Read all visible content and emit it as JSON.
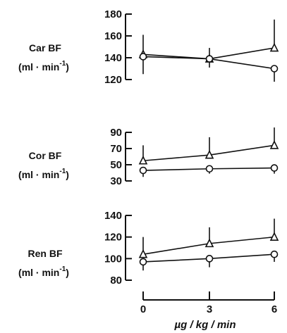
{
  "chart_data": [
    {
      "type": "line",
      "ylabel_line1": "Car BF",
      "ylabel_unit": "(ml · min",
      "ylabel_exp": "-1",
      "ylabel_close": ")",
      "x": [
        0,
        3,
        6
      ],
      "ylim": [
        120,
        180
      ],
      "yticks": [
        120,
        140,
        160,
        180
      ],
      "series": [
        {
          "marker": "triangle",
          "values": [
            143,
            139,
            149
          ],
          "error": [
            18,
            10,
            26
          ]
        },
        {
          "marker": "circle",
          "values": [
            141,
            139,
            130
          ],
          "error": [
            16,
            8,
            12
          ]
        }
      ]
    },
    {
      "type": "line",
      "ylabel_line1": "Cor BF",
      "ylabel_unit": "(ml · min",
      "ylabel_exp": "-1",
      "ylabel_close": ")",
      "x": [
        0,
        3,
        6
      ],
      "ylim": [
        30,
        90
      ],
      "yticks": [
        30,
        50,
        70,
        90
      ],
      "series": [
        {
          "marker": "triangle",
          "values": [
            55,
            62,
            74
          ],
          "error": [
            19,
            22,
            22
          ]
        },
        {
          "marker": "circle",
          "values": [
            43,
            45,
            46
          ],
          "error": [
            8,
            6,
            7
          ]
        }
      ]
    },
    {
      "type": "line",
      "ylabel_line1": "Ren BF",
      "ylabel_unit": "(ml · min",
      "ylabel_exp": "-1",
      "ylabel_close": ")",
      "x": [
        0,
        3,
        6
      ],
      "ylim": [
        80,
        140
      ],
      "yticks": [
        80,
        100,
        120,
        140
      ],
      "series": [
        {
          "marker": "triangle",
          "values": [
            104,
            114,
            120
          ],
          "error": [
            16,
            15,
            17
          ]
        },
        {
          "marker": "circle",
          "values": [
            97,
            100,
            104
          ],
          "error": [
            8,
            8,
            7
          ]
        }
      ]
    }
  ],
  "x_axis": {
    "ticks": [
      0,
      3,
      6
    ],
    "labels": [
      "0",
      "3",
      "6"
    ],
    "title": "µg / kg / min"
  }
}
